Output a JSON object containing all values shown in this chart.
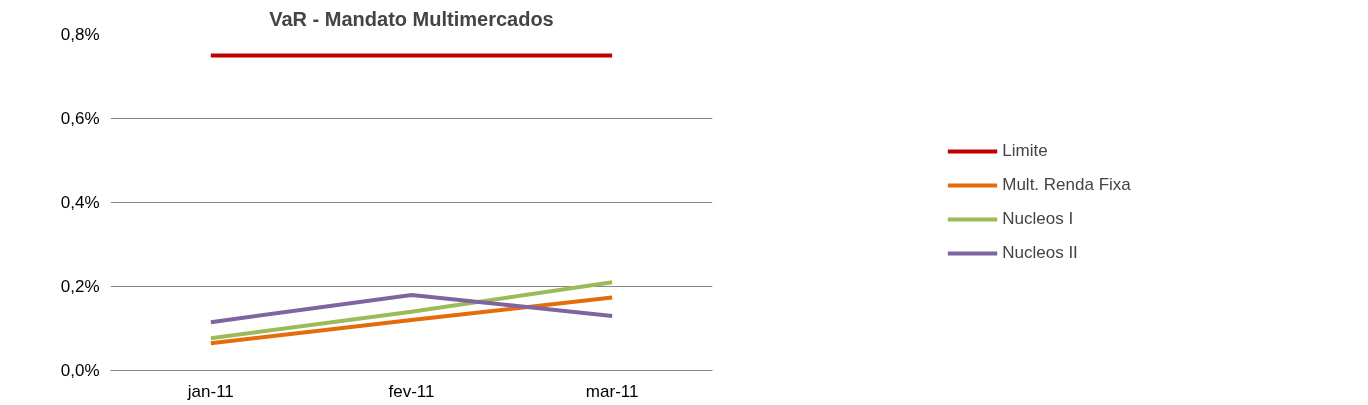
{
  "chart_data": {
    "type": "line",
    "title": "VaR - Mandato Multimercados",
    "categories": [
      "jan-11",
      "fev-11",
      "mar-11"
    ],
    "series": [
      {
        "name": "Limite",
        "color": "#c00000",
        "values": [
          0.75,
          0.75,
          0.75
        ]
      },
      {
        "name": "Mult. Renda Fixa",
        "color": "#e46c0a",
        "values": [
          0.065,
          0.12,
          0.174
        ]
      },
      {
        "name": "Nucleos I",
        "color": "#9bbb59",
        "values": [
          0.077,
          0.14,
          0.21
        ]
      },
      {
        "name": "Nucleos II",
        "color": "#8064a2",
        "values": [
          0.115,
          0.18,
          0.13
        ]
      }
    ],
    "ylim": [
      0,
      0.8
    ],
    "yticks": [
      {
        "value": 0,
        "label": "0,0%"
      },
      {
        "value": 0.2,
        "label": "0,2%"
      },
      {
        "value": 0.4,
        "label": "0,4%"
      },
      {
        "value": 0.6,
        "label": "0,6%"
      },
      {
        "value": 0.8,
        "label": "0,8%"
      }
    ],
    "grid": "y",
    "legend": "right",
    "marker": "none",
    "line_style": "solid"
  }
}
